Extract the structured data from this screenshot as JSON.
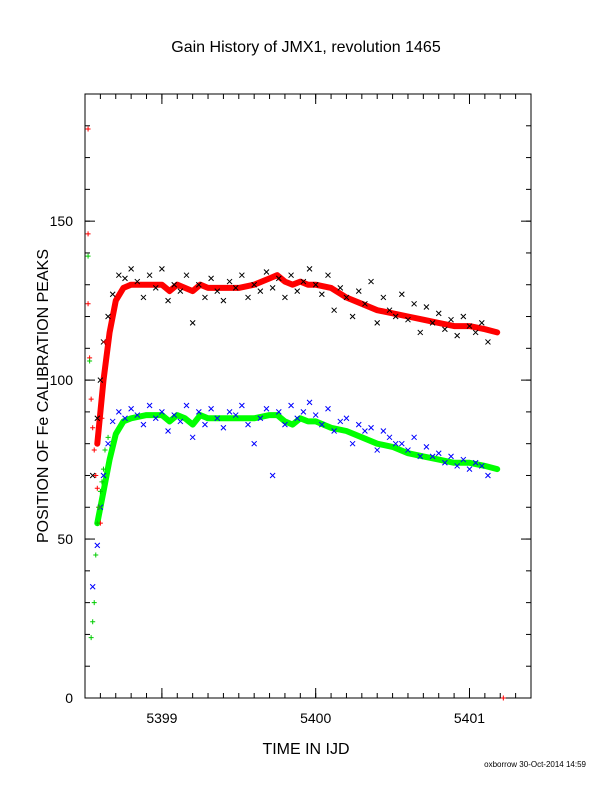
{
  "chart_data": {
    "type": "scatter",
    "title": "Gain History of JMX1, revolution 1465",
    "xlabel": "TIME IN IJD",
    "ylabel": "POSITION OF Fe CALIBRATION PEAKS",
    "xlim": [
      5398.5,
      5401.4
    ],
    "ylim": [
      0,
      190
    ],
    "x_ticks": [
      5399,
      5400,
      5401
    ],
    "x_tick_labels": [
      "5399",
      "5400",
      "5401"
    ],
    "y_ticks": [
      0,
      50,
      100,
      150
    ],
    "y_tick_labels": [
      "0",
      "50",
      "100",
      "150"
    ],
    "grid": false,
    "legend": "none",
    "footer": "oxborrow 30-Oct-2014 14:59",
    "series": [
      {
        "marker": "x",
        "color": "#000000",
        "x": [
          5398.55,
          5398.58,
          5398.6,
          5398.62,
          5398.65,
          5398.68,
          5398.72,
          5398.76,
          5398.8,
          5398.84,
          5398.88,
          5398.92,
          5398.96,
          5399.0,
          5399.04,
          5399.08,
          5399.12,
          5399.16,
          5399.2,
          5399.24,
          5399.28,
          5399.32,
          5399.36,
          5399.4,
          5399.44,
          5399.48,
          5399.52,
          5399.56,
          5399.6,
          5399.64,
          5399.68,
          5399.72,
          5399.76,
          5399.8,
          5399.84,
          5399.88,
          5399.92,
          5399.96,
          5400.0,
          5400.04,
          5400.08,
          5400.12,
          5400.16,
          5400.2,
          5400.24,
          5400.28,
          5400.32,
          5400.36,
          5400.4,
          5400.44,
          5400.48,
          5400.52,
          5400.56,
          5400.6,
          5400.64,
          5400.68,
          5400.72,
          5400.76,
          5400.8,
          5400.84,
          5400.88,
          5400.92,
          5400.96,
          5401.0,
          5401.04,
          5401.08,
          5401.12
        ],
        "y": [
          70,
          88,
          100,
          112,
          120,
          127,
          133,
          132,
          135,
          131,
          126,
          133,
          129,
          135,
          125,
          130,
          128,
          133,
          118,
          130,
          126,
          132,
          128,
          125,
          131,
          129,
          133,
          126,
          130,
          128,
          134,
          129,
          132,
          126,
          133,
          128,
          131,
          135,
          130,
          127,
          133,
          122,
          129,
          126,
          120,
          128,
          124,
          131,
          118,
          126,
          122,
          120,
          127,
          119,
          124,
          115,
          123,
          118,
          121,
          116,
          119,
          114,
          120,
          117,
          115,
          118,
          112
        ]
      },
      {
        "marker": "x",
        "color": "#0000ff",
        "x": [
          5398.55,
          5398.58,
          5398.6,
          5398.62,
          5398.65,
          5398.68,
          5398.72,
          5398.76,
          5398.8,
          5398.84,
          5398.88,
          5398.92,
          5398.96,
          5399.0,
          5399.04,
          5399.08,
          5399.12,
          5399.16,
          5399.2,
          5399.24,
          5399.28,
          5399.32,
          5399.36,
          5399.4,
          5399.44,
          5399.48,
          5399.52,
          5399.56,
          5399.6,
          5399.64,
          5399.68,
          5399.72,
          5399.76,
          5399.8,
          5399.84,
          5399.88,
          5399.92,
          5399.96,
          5400.0,
          5400.04,
          5400.08,
          5400.12,
          5400.16,
          5400.2,
          5400.24,
          5400.28,
          5400.32,
          5400.36,
          5400.4,
          5400.44,
          5400.48,
          5400.52,
          5400.56,
          5400.6,
          5400.64,
          5400.68,
          5400.72,
          5400.76,
          5400.8,
          5400.84,
          5400.88,
          5400.92,
          5400.96,
          5401.0,
          5401.04,
          5401.08,
          5401.12
        ],
        "y": [
          35,
          48,
          60,
          70,
          80,
          87,
          90,
          88,
          91,
          89,
          86,
          92,
          88,
          90,
          84,
          89,
          87,
          92,
          82,
          90,
          86,
          91,
          88,
          85,
          90,
          89,
          92,
          86,
          80,
          88,
          91,
          70,
          90,
          86,
          92,
          88,
          90,
          93,
          89,
          86,
          91,
          84,
          87,
          88,
          80,
          86,
          84,
          85,
          78,
          84,
          82,
          80,
          80,
          78,
          82,
          76,
          79,
          76,
          77,
          74,
          76,
          73,
          75,
          72,
          74,
          73,
          70
        ]
      },
      {
        "marker": "+",
        "color": "#ff0000",
        "x": [
          5398.52,
          5398.52,
          5398.52,
          5398.53,
          5398.54,
          5398.55,
          5398.56,
          5398.57,
          5398.58,
          5398.59,
          5398.6,
          5398.61,
          5398.62,
          5398.63,
          5401.22
        ],
        "y": [
          179,
          146,
          124,
          107,
          94,
          85,
          78,
          70,
          66,
          60,
          55,
          88,
          100,
          112,
          0
        ]
      },
      {
        "marker": "+",
        "color": "#00cc00",
        "x": [
          5398.52,
          5398.53,
          5398.54,
          5398.55,
          5398.56,
          5398.57,
          5398.58,
          5398.59,
          5398.6,
          5398.61,
          5398.62,
          5398.63,
          5398.65
        ],
        "y": [
          139,
          106,
          19,
          24,
          30,
          45,
          55,
          60,
          65,
          68,
          72,
          78,
          82
        ]
      }
    ],
    "trend_lines": [
      {
        "color": "#ff0000",
        "x": [
          5398.58,
          5398.62,
          5398.66,
          5398.7,
          5398.75,
          5398.8,
          5398.9,
          5399.0,
          5399.05,
          5399.1,
          5399.15,
          5399.2,
          5399.25,
          5399.3,
          5399.4,
          5399.5,
          5399.6,
          5399.7,
          5399.75,
          5399.8,
          5399.85,
          5399.9,
          5399.95,
          5400.0,
          5400.1,
          5400.2,
          5400.3,
          5400.4,
          5400.5,
          5400.6,
          5400.7,
          5400.8,
          5400.9,
          5401.0,
          5401.1,
          5401.18
        ],
        "y": [
          80,
          100,
          115,
          125,
          129,
          130,
          130,
          130,
          128,
          130,
          129,
          128,
          130,
          129,
          129,
          129,
          130,
          132,
          133,
          131,
          130,
          131,
          130,
          130,
          129,
          126,
          124,
          122,
          121,
          120,
          119,
          118,
          117,
          117,
          116,
          115
        ]
      },
      {
        "color": "#00ff00",
        "x": [
          5398.58,
          5398.62,
          5398.66,
          5398.7,
          5398.75,
          5398.8,
          5398.9,
          5399.0,
          5399.05,
          5399.1,
          5399.15,
          5399.2,
          5399.25,
          5399.3,
          5399.4,
          5399.5,
          5399.6,
          5399.7,
          5399.75,
          5399.8,
          5399.85,
          5399.9,
          5399.95,
          5400.0,
          5400.1,
          5400.2,
          5400.3,
          5400.4,
          5400.5,
          5400.6,
          5400.7,
          5400.8,
          5400.9,
          5401.0,
          5401.1,
          5401.18
        ],
        "y": [
          55,
          65,
          75,
          83,
          87,
          88,
          89,
          89,
          87,
          89,
          88,
          86,
          89,
          88,
          88,
          88,
          88,
          89,
          89,
          87,
          86,
          88,
          87,
          87,
          85,
          84,
          82,
          80,
          79,
          77,
          76,
          75,
          74,
          74,
          73,
          72
        ]
      }
    ]
  }
}
